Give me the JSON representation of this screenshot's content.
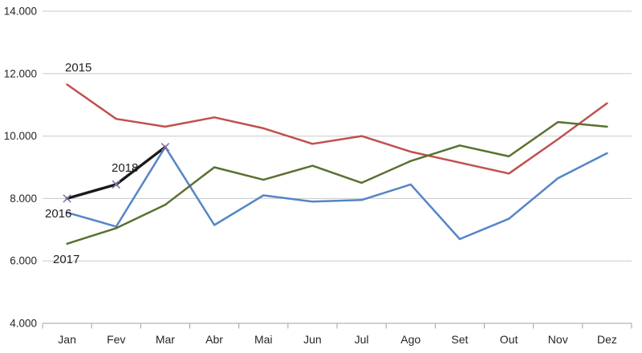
{
  "chart_data": {
    "type": "line",
    "title": "",
    "xlabel": "",
    "ylabel": "",
    "categories": [
      "Jan",
      "Fev",
      "Mar",
      "Abr",
      "Mai",
      "Jun",
      "Jul",
      "Ago",
      "Set",
      "Out",
      "Nov",
      "Dez"
    ],
    "series": [
      {
        "name": "2015",
        "color": "#C0504D",
        "values": [
          11650,
          10550,
          10300,
          10600,
          10250,
          9750,
          10000,
          9500,
          9150,
          8800,
          9900,
          11050
        ]
      },
      {
        "name": "2016",
        "color": "#5585C6",
        "values": [
          7550,
          7100,
          9650,
          7150,
          8100,
          7900,
          7950,
          8450,
          6700,
          7350,
          8650,
          9450
        ]
      },
      {
        "name": "2017",
        "color": "#59712F",
        "values": [
          6550,
          7050,
          7800,
          9000,
          8600,
          9050,
          8500,
          9200,
          9700,
          9350,
          10450,
          10300
        ]
      },
      {
        "name": "2018",
        "color": "#1A1A1A",
        "marker": "x",
        "marker_color": "#8472A2",
        "values": [
          8000,
          8450,
          9650,
          null,
          null,
          null,
          null,
          null,
          null,
          null,
          null,
          null
        ]
      }
    ],
    "ylim": [
      4000,
      14000
    ],
    "ytick_values": [
      4000,
      6000,
      8000,
      10000,
      12000,
      14000
    ],
    "ytick_labels": [
      "4.000",
      "6.000",
      "8.000",
      "10.000",
      "12.000",
      "14.000"
    ],
    "grid": "horizontal",
    "legend_position": "none",
    "gridline_color": "#C9C9C9",
    "axis_color": "#A0A0A0",
    "text_color": "#262626"
  }
}
